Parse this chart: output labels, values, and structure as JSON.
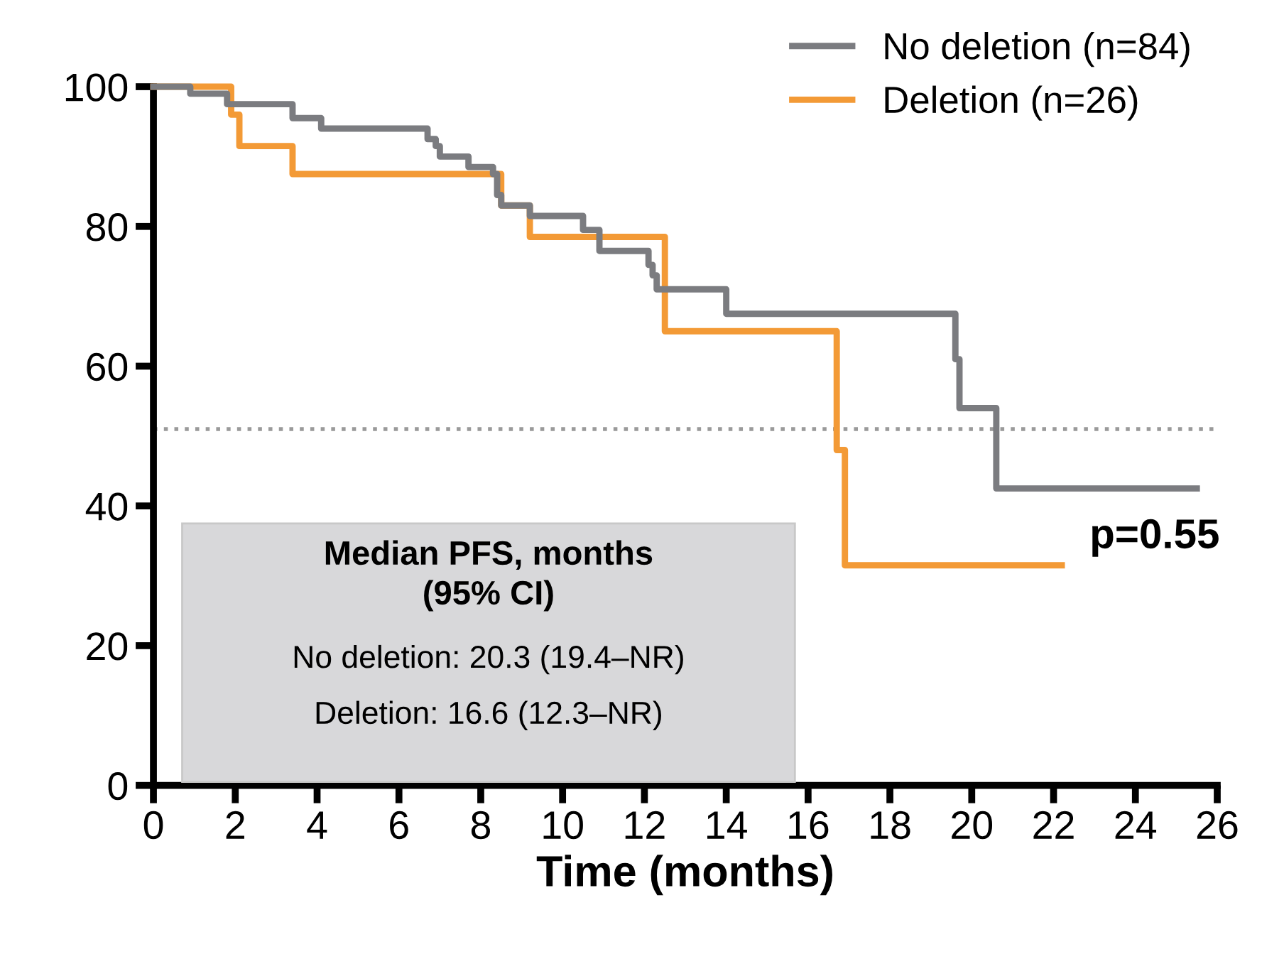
{
  "chart_data": {
    "type": "step",
    "xlabel": "Time (months)",
    "xlim": [
      0,
      26
    ],
    "xticks": [
      0,
      2,
      4,
      6,
      8,
      10,
      12,
      14,
      16,
      18,
      20,
      22,
      24,
      26
    ],
    "ylim": [
      0,
      100
    ],
    "yticks": [
      0,
      20,
      40,
      60,
      80,
      100
    ],
    "grid": false,
    "legend": "top right",
    "marker": "none",
    "line_style": "solid",
    "series": [
      {
        "name": "No deletion (n=84)",
        "color": "#7b7c80",
        "x": [
          0,
          0.9,
          1.8,
          3.4,
          4.1,
          6.7,
          6.9,
          7.0,
          7.7,
          8.3,
          8.4,
          8.5,
          9.2,
          10.5,
          10.9,
          12.1,
          12.2,
          12.3,
          14.0,
          19.6,
          19.7,
          20.6,
          25.5
        ],
        "values": [
          100,
          99,
          97.5,
          95.5,
          94,
          92.5,
          91.5,
          90,
          88.5,
          87.5,
          84.5,
          83,
          81.5,
          79.5,
          76.5,
          74.5,
          73,
          71,
          67.5,
          61,
          54,
          42.5,
          42.5
        ]
      },
      {
        "name": "Deletion (n=26)",
        "color": "#f39a36",
        "x": [
          0,
          1.9,
          2.1,
          3.4,
          8.5,
          9.2,
          12.5,
          16.7,
          16.9,
          22.2
        ],
        "values": [
          100,
          96,
          91.5,
          87.5,
          83,
          78.5,
          65,
          48,
          31.5,
          31.5
        ]
      }
    ],
    "ref_lines": [
      {
        "axis": "y",
        "value": 51,
        "color": "#9a9a9a",
        "line_style": "dotted"
      }
    ],
    "annotations": [
      "Median PFS, months\n(95% CI)",
      "No deletion: 20.3 (19.4–NR)",
      "Deletion: 16.6 (12.3–NR)",
      "p=0.55"
    ]
  }
}
